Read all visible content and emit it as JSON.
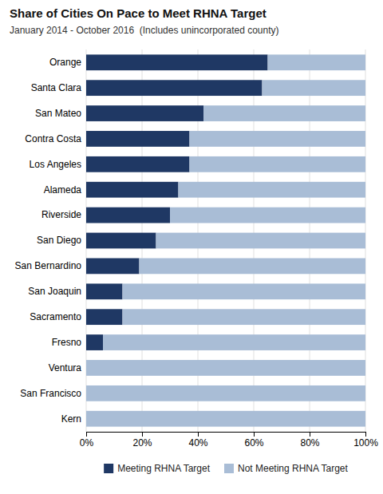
{
  "chart_data": {
    "type": "bar",
    "orientation": "horizontal",
    "stacked": true,
    "title": "Share of Cities On Pace to Meet RHNA Target",
    "subtitle": "January 2014 - October 2016  (Includes unincorporated county)",
    "categories": [
      "Orange",
      "Santa Clara",
      "San Mateo",
      "Contra Costa",
      "Los Angeles",
      "Alameda",
      "Riverside",
      "San Diego",
      "San Bernardino",
      "San Joaquin",
      "Sacramento",
      "Fresno",
      "Ventura",
      "San Francisco",
      "Kern"
    ],
    "series": [
      {
        "name": "Meeting RHNA Target",
        "color": "#1F3864",
        "values": [
          65,
          63,
          42,
          37,
          37,
          33,
          30,
          25,
          19,
          13,
          13,
          6,
          0,
          0,
          0
        ]
      },
      {
        "name": "Not Meeting RHNA Target",
        "color": "#A9BDD6",
        "values": [
          35,
          37,
          58,
          63,
          63,
          67,
          70,
          75,
          81,
          87,
          87,
          94,
          100,
          100,
          100
        ]
      }
    ],
    "xlim": [
      0,
      100
    ],
    "xticks": [
      {
        "value": 0,
        "label": "0%"
      },
      {
        "value": 20,
        "label": "20%"
      },
      {
        "value": 40,
        "label": "40%"
      },
      {
        "value": 60,
        "label": "60%"
      },
      {
        "value": 80,
        "label": "80%"
      },
      {
        "value": 100,
        "label": "100%"
      }
    ],
    "grid": true,
    "legend": "bottom"
  }
}
